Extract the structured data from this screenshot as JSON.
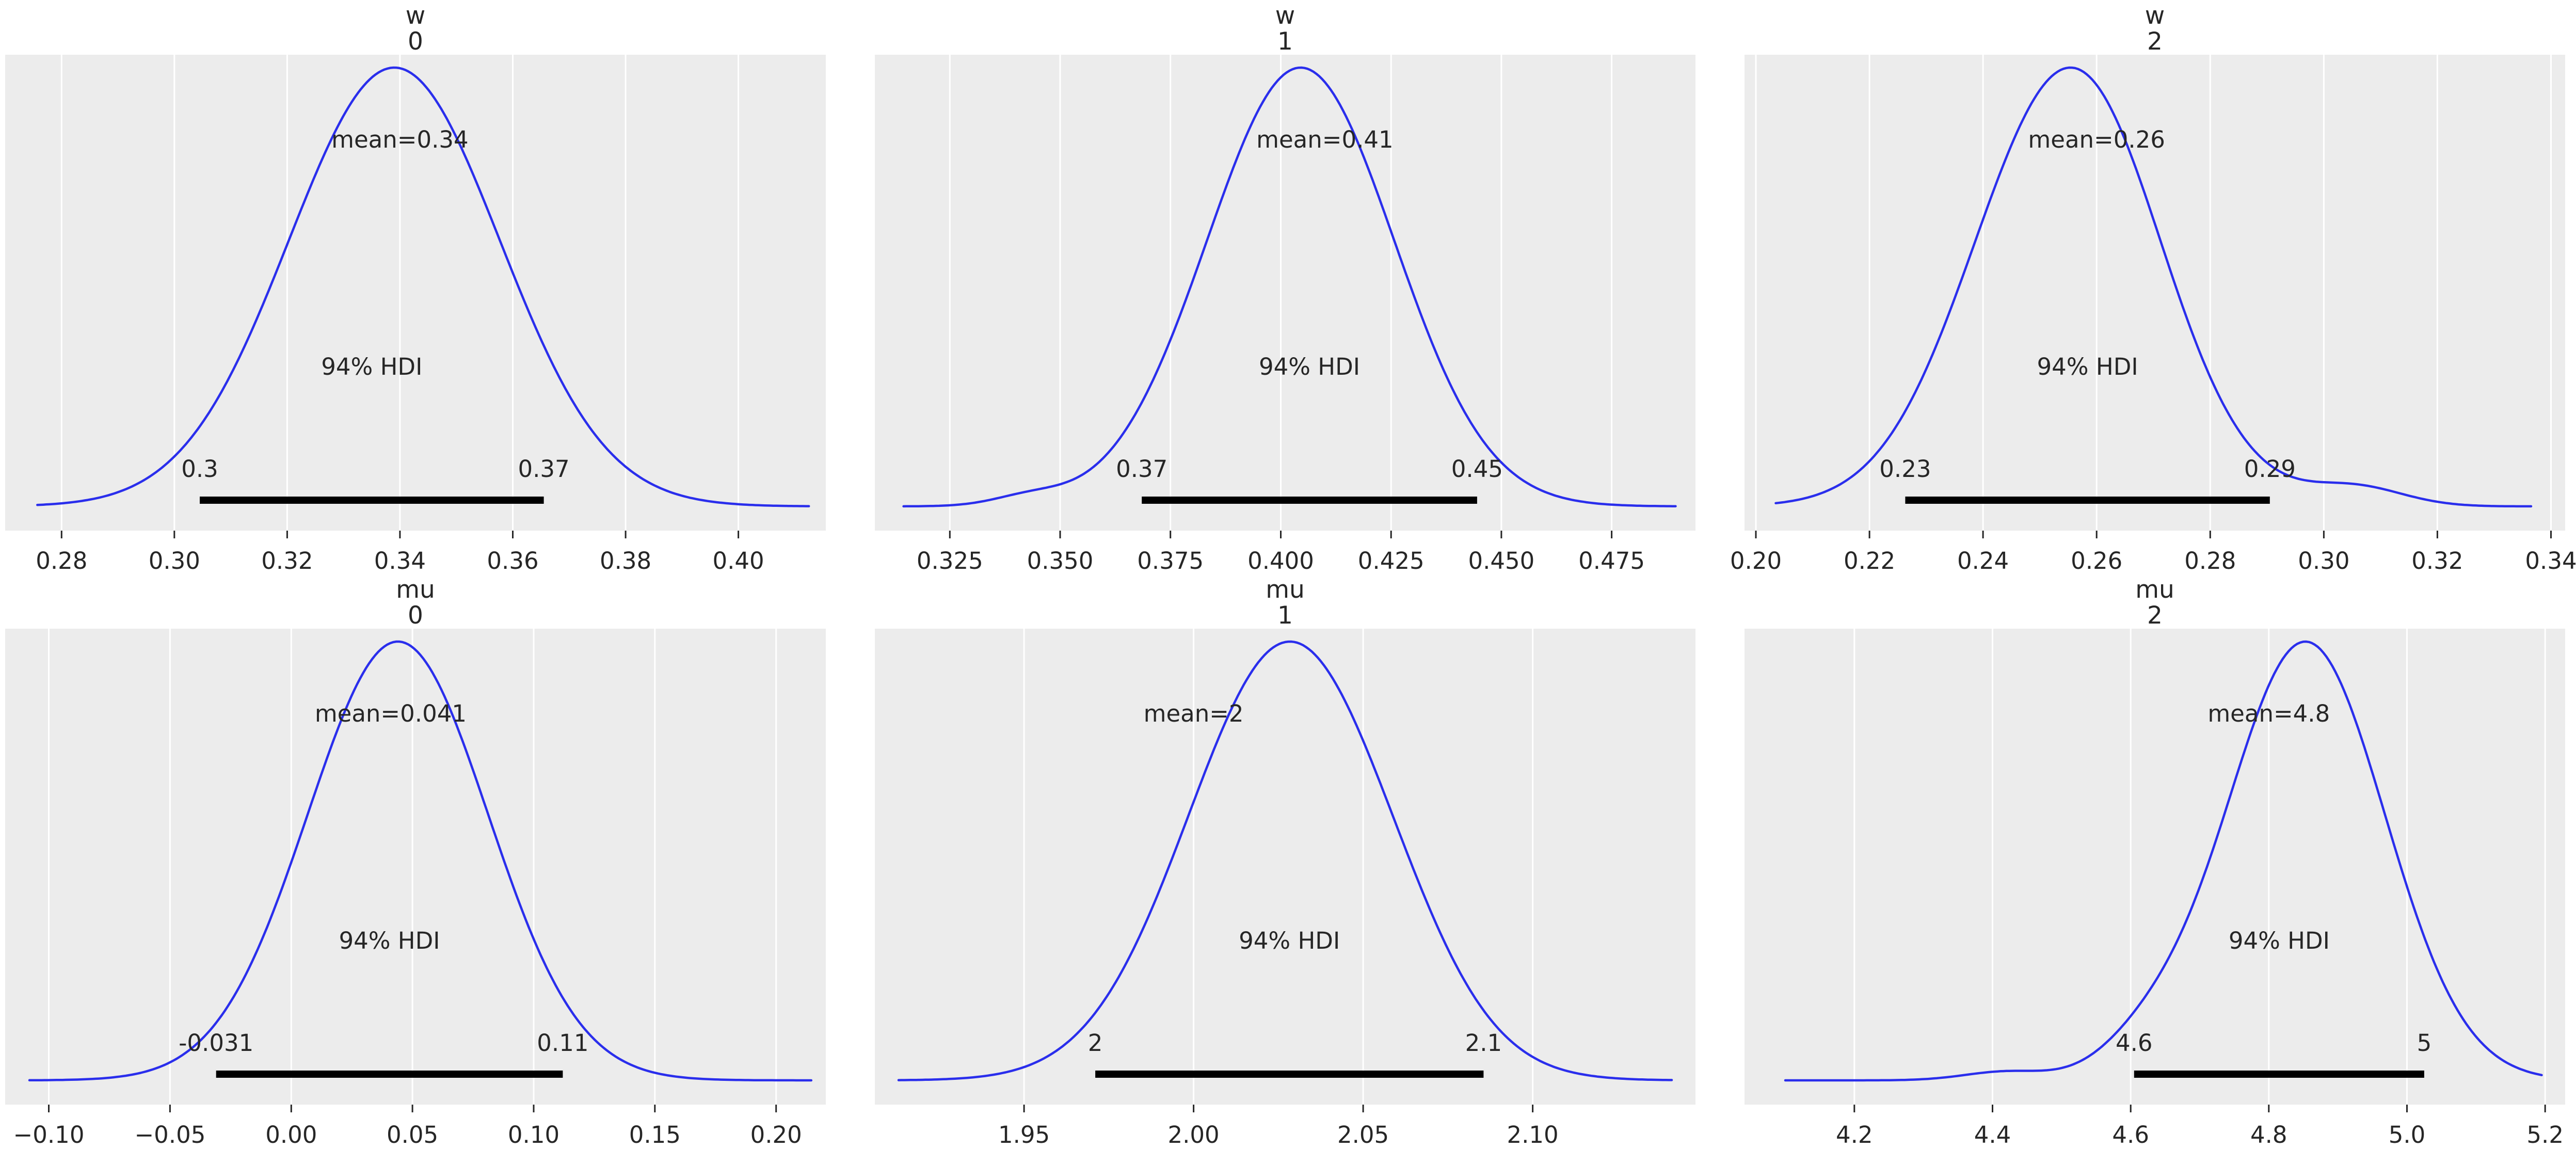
{
  "figure": {
    "kind": "arviz-plot-posterior",
    "hdi_text": "94% HDI",
    "colors": {
      "figure_background": "#ffffff",
      "panel_background": "#ececec",
      "gridline": "#ffffff",
      "kde_curve": "#2a2eec",
      "hdi_bar": "#000000",
      "text": "#262626",
      "tick_mark": "#262626"
    }
  },
  "chart_data": [
    {
      "type": "area",
      "kind": "kde-posterior",
      "title": "w",
      "subtitle": "0",
      "mean": 0.34,
      "mean_label": "mean=0.34",
      "hdi": [
        0.3045,
        0.3655
      ],
      "hdi_labels": [
        "0.3",
        "0.37"
      ],
      "hdi_interval_label": "94% HDI",
      "xlim": [
        0.27,
        0.4155
      ],
      "data_range": [
        0.2757,
        0.4125
      ],
      "ticks": [
        0.28,
        0.3,
        0.32,
        0.34,
        0.36,
        0.38,
        0.4
      ],
      "tick_labels": [
        "0.28",
        "0.30",
        "0.32",
        "0.34",
        "0.36",
        "0.38",
        "0.40"
      ],
      "kde_components": [
        {
          "mu": 0.339,
          "sigma": 0.0187,
          "amp": 1
        }
      ]
    },
    {
      "type": "area",
      "kind": "kde-posterior",
      "title": "w",
      "subtitle": "1",
      "mean": 0.41,
      "mean_label": "mean=0.41",
      "hdi": [
        0.3685,
        0.4445
      ],
      "hdi_labels": [
        "0.37",
        "0.45"
      ],
      "hdi_interval_label": "94% HDI",
      "xlim": [
        0.308,
        0.494
      ],
      "data_range": [
        0.3145,
        0.4895
      ],
      "ticks": [
        0.325,
        0.35,
        0.375,
        0.4,
        0.425,
        0.45,
        0.475
      ],
      "tick_labels": [
        "0.325",
        "0.350",
        "0.375",
        "0.400",
        "0.425",
        "0.450",
        "0.475"
      ],
      "kde_components": [
        {
          "mu": 0.4045,
          "sigma": 0.0212,
          "amp": 1
        },
        {
          "mu": 0.343,
          "sigma": 0.008,
          "amp": 0.02
        }
      ]
    },
    {
      "type": "area",
      "kind": "kde-posterior",
      "title": "w",
      "subtitle": "2",
      "mean": 0.26,
      "mean_label": "mean=0.26",
      "hdi": [
        0.2263,
        0.2905
      ],
      "hdi_labels": [
        "0.23",
        "0.29"
      ],
      "hdi_interval_label": "94% HDI",
      "xlim": [
        0.198,
        0.3425
      ],
      "data_range": [
        0.2035,
        0.3365
      ],
      "ticks": [
        0.2,
        0.22,
        0.24,
        0.26,
        0.28,
        0.3,
        0.32,
        0.34
      ],
      "tick_labels": [
        "0.20",
        "0.22",
        "0.24",
        "0.26",
        "0.28",
        "0.30",
        "0.32",
        "0.34"
      ],
      "kde_components": [
        {
          "mu": 0.2545,
          "sigma": 0.0163,
          "amp": 1
        },
        {
          "mu": 0.2635,
          "sigma": 0.009,
          "amp": 0.05
        },
        {
          "mu": 0.3055,
          "sigma": 0.0085,
          "amp": 0.045
        }
      ]
    },
    {
      "type": "area",
      "kind": "kde-posterior",
      "title": "mu",
      "subtitle": "0",
      "mean": 0.041,
      "mean_label": "mean=0.041",
      "hdi": [
        -0.031,
        0.112
      ],
      "hdi_labels": [
        "-0.031",
        "0.11"
      ],
      "hdi_interval_label": "94% HDI",
      "xlim": [
        -0.118,
        0.2205
      ],
      "data_range": [
        -0.108,
        0.2145
      ],
      "ticks": [
        -0.1,
        -0.05,
        0.0,
        0.05,
        0.1,
        0.15,
        0.2
      ],
      "tick_labels": [
        "−0.10",
        "−0.05",
        "0.00",
        "0.05",
        "0.10",
        "0.15",
        "0.20"
      ],
      "kde_components": [
        {
          "mu": 0.044,
          "sigma": 0.0372,
          "amp": 1
        }
      ]
    },
    {
      "type": "area",
      "kind": "kde-posterior",
      "title": "mu",
      "subtitle": "1",
      "mean": 2,
      "mean_label": "mean=2",
      "hdi": [
        1.971,
        2.0855
      ],
      "hdi_labels": [
        "2",
        "2.1"
      ],
      "hdi_interval_label": "94% HDI",
      "xlim": [
        1.906,
        2.148
      ],
      "data_range": [
        1.913,
        2.141
      ],
      "ticks": [
        1.95,
        2.0,
        2.05,
        2.1
      ],
      "tick_labels": [
        "1.95",
        "2.00",
        "2.05",
        "2.10"
      ],
      "kde_components": [
        {
          "mu": 2.028,
          "sigma": 0.0295,
          "amp": 1
        },
        {
          "mu": 2.062,
          "sigma": 0.018,
          "amp": 0.025
        }
      ]
    },
    {
      "type": "area",
      "kind": "kde-posterior",
      "title": "mu",
      "subtitle": "2",
      "mean": 4.8,
      "mean_label": "mean=4.8",
      "hdi": [
        4.605,
        5.025
      ],
      "hdi_labels": [
        "4.6",
        "5"
      ],
      "hdi_interval_label": "94% HDI",
      "xlim": [
        4.041,
        5.229
      ],
      "data_range": [
        4.1,
        5.195
      ],
      "ticks": [
        4.2,
        4.4,
        4.6,
        4.8,
        5.0,
        5.2
      ],
      "tick_labels": [
        "4.2",
        "4.4",
        "4.6",
        "4.8",
        "5.0",
        "5.2"
      ],
      "kde_components": [
        {
          "mu": 4.853,
          "sigma": 0.115,
          "amp": 1
        },
        {
          "mu": 4.62,
          "sigma": 0.065,
          "amp": 0.06
        },
        {
          "mu": 4.42,
          "sigma": 0.06,
          "amp": 0.02
        }
      ]
    }
  ]
}
